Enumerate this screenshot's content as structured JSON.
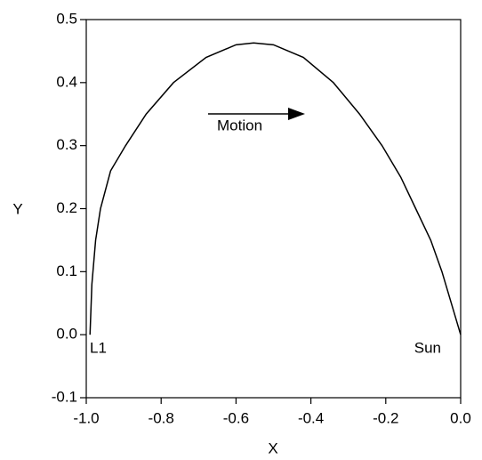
{
  "chart_data": {
    "type": "line",
    "x_label": "X",
    "y_label": "Y",
    "x": [
      -0.99,
      -0.985,
      -0.975,
      -0.962,
      -0.935,
      -0.895,
      -0.84,
      -0.767,
      -0.68,
      -0.6,
      -0.553,
      -0.5,
      -0.42,
      -0.34,
      -0.27,
      -0.21,
      -0.16,
      -0.12,
      -0.08,
      -0.05,
      -0.02,
      0.0
    ],
    "series": [
      {
        "color": "#000000",
        "values": [
          0.0,
          0.08,
          0.15,
          0.2,
          0.26,
          0.3,
          0.35,
          0.4,
          0.44,
          0.46,
          0.463,
          0.46,
          0.44,
          0.4,
          0.35,
          0.3,
          0.25,
          0.2,
          0.15,
          0.1,
          0.04,
          0.0
        ]
      }
    ],
    "xlim": [
      -1.0,
      0.0
    ],
    "xticks": [
      {
        "value": -1.0,
        "label": "-1.0"
      },
      -0.8,
      -0.6,
      -0.4,
      -0.2,
      {
        "value": 0.0,
        "label": "0.0"
      }
    ],
    "ylim": [
      -0.1,
      0.5
    ],
    "yticks": [
      -0.1,
      {
        "value": 0.0,
        "label": "0.0"
      },
      0.1,
      0.2,
      0.3,
      0.4,
      0.5
    ],
    "annotations": [
      {
        "text": "Motion"
      },
      {
        "text": "L1"
      },
      {
        "text": "Sun"
      }
    ]
  }
}
